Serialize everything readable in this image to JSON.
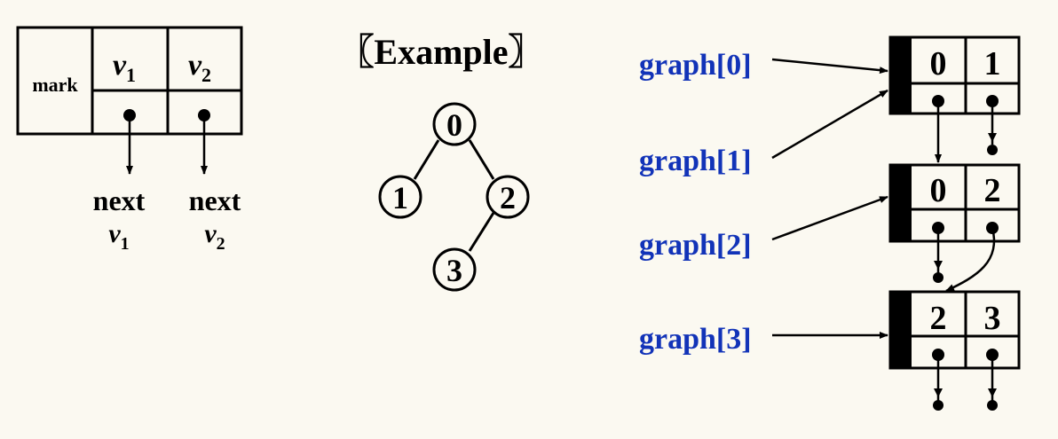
{
  "node_structure": {
    "mark_label": "mark",
    "v1_label": "v",
    "v1_sub": "1",
    "v2_label": "v",
    "v2_sub": "2",
    "next_word_1": "next",
    "next_v1": "v",
    "next_v1_sub": "1",
    "next_word_2": "next",
    "next_v2": "v",
    "next_v2_sub": "2"
  },
  "example": {
    "title": "〖Example〗",
    "nodes": [
      "0",
      "1",
      "2",
      "3"
    ]
  },
  "adjacency": {
    "pointers": [
      "graph[0]",
      "graph[1]",
      "graph[2]",
      "graph[3]"
    ],
    "records": [
      {
        "v1": "0",
        "v2": "1"
      },
      {
        "v1": "0",
        "v2": "2"
      },
      {
        "v1": "2",
        "v2": "3"
      }
    ]
  },
  "colors": {
    "background": "#fbf9f1",
    "ink": "#000000",
    "pointer_label": "#1233b8"
  }
}
